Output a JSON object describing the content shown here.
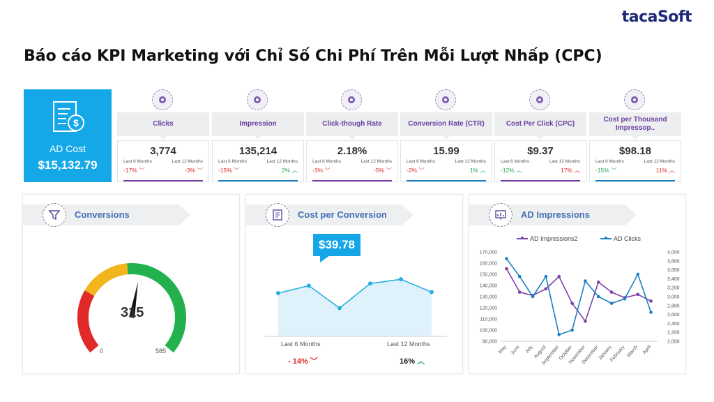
{
  "brand": {
    "prefix": "taca",
    "suffix": "Soft"
  },
  "title": "Báo cáo KPI Marketing với Chỉ Số Chi Phí Trên Mỗi Lượt Nhấp (CPC)",
  "ad_cost": {
    "label": "AD Cost",
    "value": "$15,132.79",
    "icon": "invoice-dollar-icon"
  },
  "kpis": [
    {
      "label": "Clicks",
      "value": "3,774",
      "p1": "Last 6 Months",
      "p2": "Last 12 Months",
      "c1": "-17%",
      "c2": "-3%",
      "d1": "down",
      "d2": "down",
      "bar": "#7b3fa8",
      "icon": "cursor-click-icon"
    },
    {
      "label": "Impression",
      "value": "135,214",
      "p1": "Last 6 Months",
      "p2": "Last 12 Months",
      "c1": "-15%",
      "c2": "2%",
      "d1": "down",
      "d2": "up",
      "bar": "#1b7fc4",
      "icon": "network-icon"
    },
    {
      "label": "Click-though Rate",
      "value": "2.18%",
      "p1": "Last 6 Months",
      "p2": "Last 12 Months",
      "c1": "-3%",
      "c2": "-5%",
      "d1": "down",
      "d2": "down",
      "bar": "#7b3fa8",
      "icon": "percent-click-icon"
    },
    {
      "label": "Conversion Rate (CTR)",
      "value": "15.99",
      "p1": "Last 6 Months",
      "p2": "Last 12 Months",
      "c1": "-2%",
      "c2": "1%",
      "d1": "down",
      "d2": "up",
      "bar": "#1b7fc4",
      "icon": "conversion-icon"
    },
    {
      "label": "Cost Per Click (CPC)",
      "value": "$9.37",
      "p1": "Last 6 Months",
      "p2": "Last 12 Months",
      "c1": "-12%",
      "c2": "17%",
      "d1": "up",
      "d2": "up",
      "c1_class": "pos",
      "c2_class": "neg",
      "bar": "#7b3fa8",
      "icon": "cost-click-icon"
    },
    {
      "label": "Cost per Thousand Impressop..",
      "value": "$98.18",
      "p1": "Last 6 Months",
      "p2": "Last 12 Months",
      "c1": "-15%",
      "c2": "11%",
      "d1": "down",
      "d2": "up",
      "c1_class": "pos",
      "c2_class": "neg",
      "bar": "#1b7fc4",
      "icon": "cost-thousand-icon"
    }
  ],
  "conversions": {
    "title": "Conversions",
    "value": "315",
    "min": "0",
    "max": "585",
    "level": 0.538,
    "icon": "filter-funnel-icon"
  },
  "cpc_panel": {
    "title": "Cost per Conversion",
    "badge": "$39.78",
    "icon": "document-chart-icon",
    "x1": "Last 6 Months",
    "x2": "Last 12 Months",
    "change1": "- 14%",
    "change2": "16%"
  },
  "ad_panel": {
    "title": "AD Impressions",
    "icon": "stats-board-icon"
  },
  "chart_data": [
    {
      "type": "area",
      "title": "Cost per Conversion",
      "categories": [
        "Last 6 Months",
        "",
        "",
        "",
        "",
        "Last 12 Months"
      ],
      "values": [
        40,
        47,
        26,
        49,
        53,
        41
      ],
      "ylim": [
        0,
        80
      ],
      "color": "#29aee0",
      "fill": "#dff1fb"
    },
    {
      "type": "line",
      "title": "AD Impressions",
      "categories": [
        "May",
        "June",
        "July",
        "August",
        "September",
        "October",
        "November",
        "December",
        "January",
        "February",
        "March",
        "April"
      ],
      "series": [
        {
          "name": "AD Impressions2",
          "axis": "left",
          "color": "#7b3fa8",
          "values": [
            155000,
            134000,
            131000,
            137000,
            148000,
            124000,
            108000,
            143000,
            134000,
            129000,
            132000,
            126000
          ]
        },
        {
          "name": "AD Clicks",
          "axis": "right",
          "color": "#1b7fc4",
          "values": [
            3850,
            3450,
            3000,
            3450,
            2150,
            2250,
            3350,
            3000,
            2850,
            2950,
            3500,
            2650
          ]
        }
      ],
      "y_left": {
        "min": 90000,
        "max": 170000,
        "ticks": [
          "90,000",
          "100,000",
          "110,000",
          "120,000",
          "130,000",
          "140,000",
          "150,000",
          "160,000",
          "170,000"
        ]
      },
      "y_right": {
        "min": 2000,
        "max": 4000,
        "ticks": [
          "2,000",
          "2,200",
          "2,400",
          "2,600",
          "2,800",
          "3,000",
          "3,200",
          "3,400",
          "3,600",
          "3,800",
          "4,000"
        ]
      },
      "legend": "top"
    }
  ]
}
